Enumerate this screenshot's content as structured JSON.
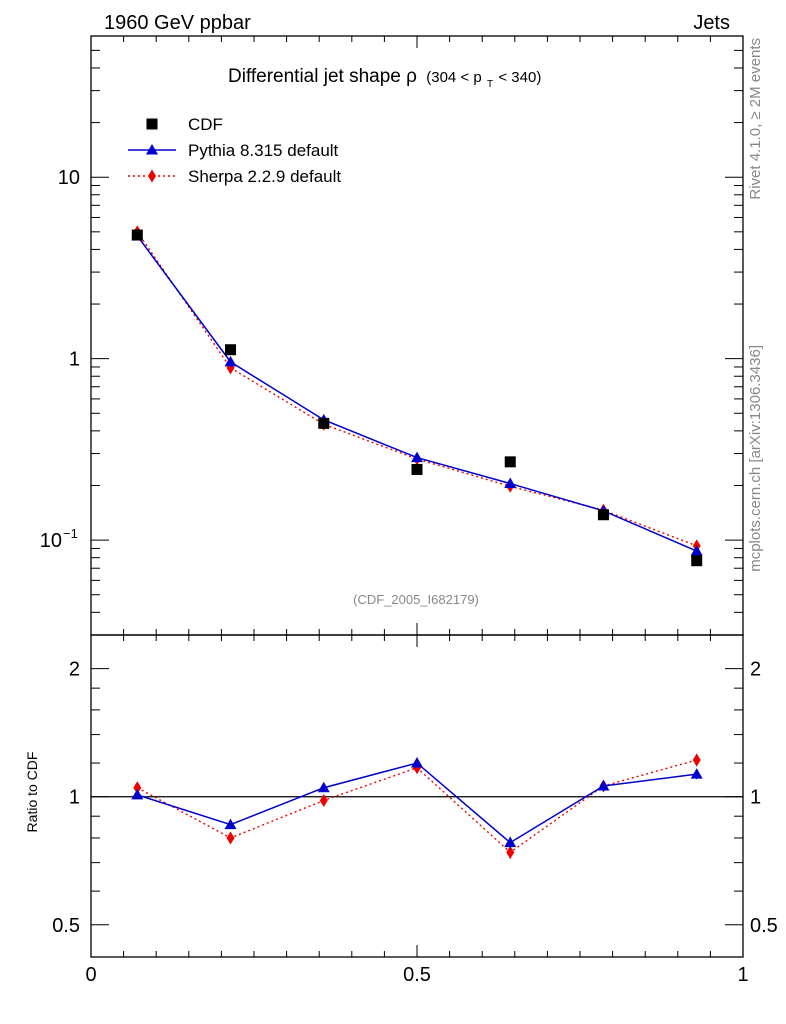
{
  "header": {
    "left_label": "1960 GeV ppbar",
    "right_label": "Jets"
  },
  "side": {
    "rivet_label": "Rivet 4.1.0, ≥ 2M events",
    "mcplots_label": "mcplots.cern.ch [arXiv:1306.3436]"
  },
  "chart_data": [
    {
      "type": "scatter",
      "panel": "main",
      "title_main": "Differential jet shape ρ",
      "title_range_prefix": "(304 < p",
      "title_range_sub": "T",
      "title_range_suffix": " < 340)",
      "analysis_label": "(CDF_2005_I682179)",
      "yscale": "log",
      "xlim": [
        0,
        1
      ],
      "ylim": [
        0.03,
        60
      ],
      "yticks": [
        {
          "value": 10,
          "label": "10"
        },
        {
          "value": 1,
          "label": "1"
        },
        {
          "value": 0.1,
          "label": "10",
          "exp": "−1"
        }
      ],
      "legend_position": "top-left",
      "series": [
        {
          "name": "CDF",
          "color": "#000000",
          "marker": "square",
          "line": "none",
          "x": [
            0.071,
            0.214,
            0.357,
            0.5,
            0.643,
            0.786,
            0.929
          ],
          "y": [
            4.8,
            1.12,
            0.44,
            0.245,
            0.27,
            0.138,
            0.077
          ]
        },
        {
          "name": "Pythia 8.315 default",
          "color": "#0000cc",
          "marker": "triangle",
          "line": "solid",
          "x": [
            0.071,
            0.214,
            0.357,
            0.5,
            0.643,
            0.786,
            0.929
          ],
          "y": [
            4.75,
            0.96,
            0.46,
            0.285,
            0.205,
            0.145,
            0.087
          ]
        },
        {
          "name": "Sherpa 2.2.9 default",
          "color": "#ee0000",
          "marker": "diamond",
          "line": "dotted",
          "x": [
            0.071,
            0.214,
            0.357,
            0.5,
            0.643,
            0.786,
            0.929
          ],
          "y": [
            5.0,
            0.89,
            0.435,
            0.28,
            0.198,
            0.146,
            0.093
          ]
        }
      ]
    },
    {
      "type": "line",
      "panel": "ratio",
      "ylabel": "Ratio to CDF",
      "yscale": "log",
      "xlim": [
        0,
        1
      ],
      "ylim": [
        0.42,
        2.4
      ],
      "xticks": [
        {
          "value": 0,
          "label": "0"
        },
        {
          "value": 0.5,
          "label": "0.5"
        },
        {
          "value": 1,
          "label": "1"
        }
      ],
      "yticks": [
        {
          "value": 2,
          "label": "2"
        },
        {
          "value": 1,
          "label": "1"
        },
        {
          "value": 0.5,
          "label": "0.5"
        }
      ],
      "reference_line": 1,
      "series": [
        {
          "name": "Pythia 8.315 default",
          "color": "#0000cc",
          "marker": "triangle",
          "line": "solid",
          "x": [
            0.071,
            0.214,
            0.357,
            0.5,
            0.643,
            0.786,
            0.929
          ],
          "y": [
            1.01,
            0.86,
            1.05,
            1.2,
            0.78,
            1.06,
            1.13
          ],
          "err": [
            0.015,
            0.015,
            0.015,
            0.025,
            0.025,
            0.03,
            0.03
          ]
        },
        {
          "name": "Sherpa 2.2.9 default",
          "color": "#ee0000",
          "marker": "diamond",
          "line": "dotted",
          "x": [
            0.071,
            0.214,
            0.357,
            0.5,
            0.643,
            0.786,
            0.929
          ],
          "y": [
            1.05,
            0.8,
            0.98,
            1.17,
            0.74,
            1.06,
            1.22
          ],
          "err": [
            0.015,
            0.015,
            0.015,
            0.025,
            0.025,
            0.03,
            0.04
          ]
        }
      ]
    }
  ]
}
